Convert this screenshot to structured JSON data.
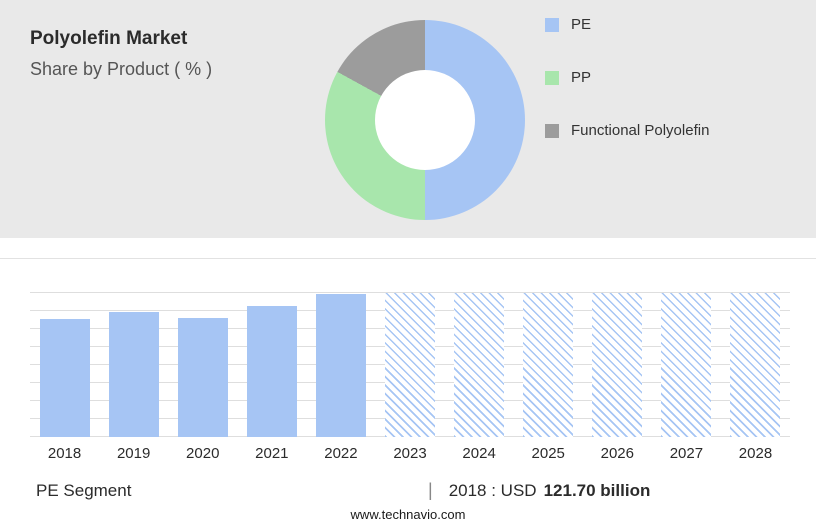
{
  "header": {
    "title": "Polyolefin Market",
    "subtitle": "Share by Product ( % )"
  },
  "chart_data": [
    {
      "type": "pie",
      "donut": true,
      "title": "Share by Product ( % )",
      "labels": [
        "PE",
        "PP",
        "Functional Polyolefin"
      ],
      "values": [
        50,
        33,
        17
      ],
      "colors": [
        "#a6c5f4",
        "#a8e6ac",
        "#9c9c9c"
      ],
      "legend_position": "right",
      "hole_color": "#ffffff"
    },
    {
      "type": "bar",
      "categories": [
        "2018",
        "2019",
        "2020",
        "2021",
        "2022",
        "2023",
        "2024",
        "2025",
        "2026",
        "2027",
        "2028"
      ],
      "values": [
        121.7,
        129,
        123,
        136,
        147.5,
        148.5,
        148.5,
        148.5,
        148.5,
        148.5,
        148.5
      ],
      "unit": "USD billion",
      "forecast_from": "2023",
      "forecast_style": "hatched",
      "bar_color": "#a6c5f4",
      "ylim": [
        0,
        150
      ],
      "grid": true,
      "legend_position": "none"
    }
  ],
  "footer": {
    "segment_label": "PE Segment",
    "separator": "|",
    "annotation_prefix": "2018 : USD",
    "annotation_value": "121.70 billion",
    "website": "www.technavio.com"
  }
}
